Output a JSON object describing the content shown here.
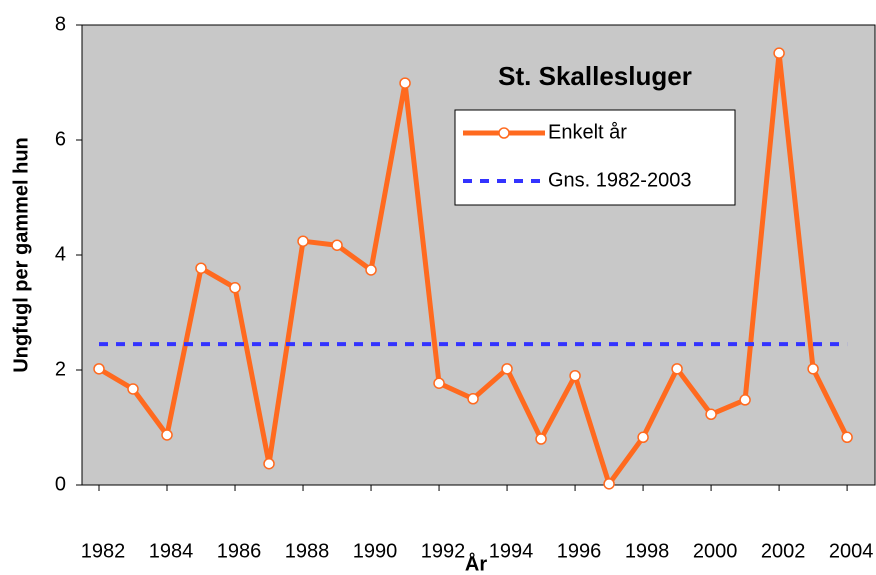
{
  "chart_data": {
    "type": "line",
    "title": "St. Skallesluger",
    "x_label": "År",
    "y_label": "Ungfugl per gammel hun",
    "x": [
      1982,
      1983,
      1984,
      1985,
      1986,
      1987,
      1988,
      1989,
      1990,
      1991,
      1992,
      1993,
      1994,
      1995,
      1996,
      1997,
      1998,
      1999,
      2000,
      2001,
      2002,
      2003,
      2004
    ],
    "series": [
      {
        "name": "Enkelt år",
        "color": "#ff6a1f",
        "marker": "circle",
        "values": [
          2.02,
          1.67,
          0.87,
          3.77,
          3.43,
          0.37,
          4.24,
          4.17,
          3.74,
          6.99,
          1.77,
          1.5,
          2.02,
          0.8,
          1.9,
          0.02,
          0.83,
          2.02,
          1.23,
          1.48,
          7.51,
          2.02,
          0.83
        ]
      },
      {
        "name": "Gns. 1982-2003",
        "color": "#3333ff",
        "dashed": true,
        "values": [
          2.45,
          2.45,
          2.45,
          2.45,
          2.45,
          2.45,
          2.45,
          2.45,
          2.45,
          2.45,
          2.45,
          2.45,
          2.45,
          2.45,
          2.45,
          2.45,
          2.45,
          2.45,
          2.45,
          2.45,
          2.45,
          2.45,
          2.45
        ]
      }
    ],
    "xlim": [
      1981.5,
      2004.85
    ],
    "xticks": [
      1982,
      1984,
      1986,
      1988,
      1990,
      1992,
      1994,
      1996,
      1998,
      2000,
      2002,
      2004
    ],
    "ylim": [
      0,
      8
    ],
    "yticks": [
      0,
      2,
      4,
      6,
      8
    ],
    "legend": "upper right",
    "background": "#c8c8c8"
  }
}
